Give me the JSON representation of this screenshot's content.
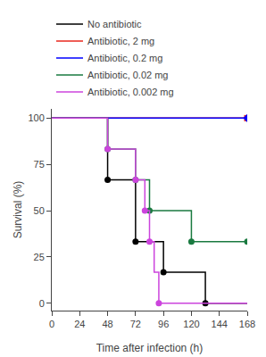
{
  "chart_data": {
    "type": "line",
    "xlabel": "Time after infection (h)",
    "ylabel": "Survival (%)",
    "xlim": [
      0,
      168
    ],
    "ylim": [
      -4,
      105
    ],
    "xticks": [
      0,
      24,
      48,
      72,
      96,
      120,
      144,
      168
    ],
    "yticks": [
      0,
      25,
      50,
      75,
      100
    ],
    "grid": false,
    "legend": "top left",
    "series": [
      {
        "name": "No antibiotic",
        "color": "#000000",
        "marker": "circle",
        "x": [
          0,
          48,
          48,
          72,
          72,
          96,
          96,
          132,
          132,
          168
        ],
        "values": [
          100,
          100,
          66.7,
          66.7,
          33.3,
          33.3,
          16.7,
          16.7,
          0,
          0
        ],
        "dots": {
          "x": [
            48,
            72,
            96,
            132
          ],
          "values": [
            66.7,
            33.3,
            16.7,
            0
          ]
        }
      },
      {
        "name": "Antibiotic, 2 mg",
        "color": "#e8281e",
        "marker": "square",
        "x": [
          0,
          168
        ],
        "values": [
          100,
          100
        ],
        "dots": {
          "x": [
            168
          ],
          "values": [
            100
          ]
        }
      },
      {
        "name": "Antibiotic, 0.2 mg",
        "color": "#0000ff",
        "marker": "diamond",
        "x": [
          0,
          168
        ],
        "values": [
          100,
          100
        ],
        "dots": {
          "x": [
            168
          ],
          "values": [
            100
          ]
        }
      },
      {
        "name": "Antibiotic, 0.02 mg",
        "color": "#1a7a40",
        "marker": "circle",
        "x": [
          0,
          48,
          48,
          72,
          72,
          84,
          84,
          120,
          120,
          168
        ],
        "values": [
          100,
          100,
          83.3,
          83.3,
          66.7,
          66.7,
          50.0,
          50.0,
          33.3,
          33.3
        ],
        "dots": {
          "x": [
            48,
            72,
            84,
            120,
            168
          ],
          "values": [
            83.3,
            66.7,
            50.0,
            33.3,
            33.3
          ]
        }
      },
      {
        "name": "Antibiotic, 0.002 mg",
        "color": "#cc44dd",
        "marker": "circle",
        "x": [
          0,
          48,
          48,
          72,
          72,
          80,
          80,
          84,
          84,
          88,
          88,
          92,
          92,
          168
        ],
        "values": [
          100,
          100,
          83.3,
          83.3,
          66.7,
          66.7,
          50.0,
          50.0,
          33.3,
          33.3,
          16.7,
          16.7,
          0,
          0
        ],
        "dots": {
          "x": [
            48,
            72,
            80,
            84,
            92
          ],
          "values": [
            83.3,
            66.7,
            50.0,
            33.3,
            0
          ]
        }
      }
    ]
  }
}
